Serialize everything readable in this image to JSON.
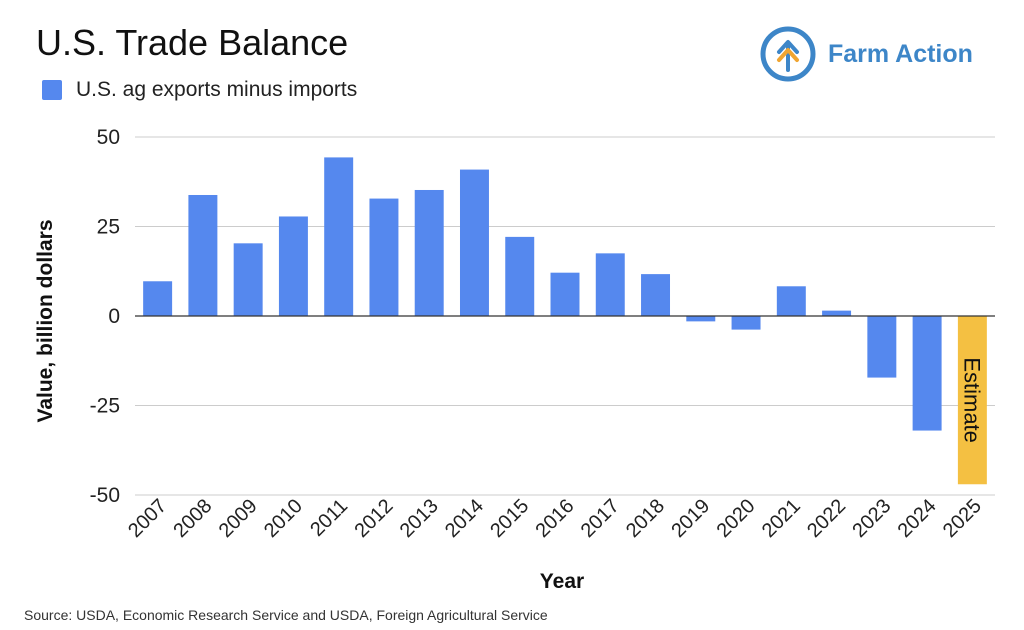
{
  "brand": {
    "name": "Farm Action",
    "logo_icon": "upward-arrow-circle-logo",
    "color": "#3d86c8",
    "accent": "#f0a531"
  },
  "footer": {
    "source": "Source: USDA, Economic Research Service and USDA, Foreign Agricultural Service"
  },
  "chart_data": {
    "type": "bar",
    "title": "U.S. Trade Balance",
    "legend": {
      "placement": "top-left",
      "entries": [
        "U.S. ag exports minus imports"
      ]
    },
    "xlabel": "Year",
    "ylabel": "Value, billion dollars",
    "ylim": [
      -50,
      50
    ],
    "yticks": [
      -50,
      -25,
      0,
      25,
      50
    ],
    "ytick_labels": [
      "-50",
      "-25",
      "0",
      "25",
      "50"
    ],
    "grid": true,
    "categories": [
      "2007",
      "2008",
      "2009",
      "2010",
      "2011",
      "2012",
      "2013",
      "2014",
      "2015",
      "2016",
      "2017",
      "2018",
      "2019",
      "2020",
      "2021",
      "2022",
      "2023",
      "2024",
      "2025"
    ],
    "series": [
      {
        "name": "U.S. ag exports minus imports",
        "color": "#5588ee",
        "values": [
          9.7,
          33.8,
          20.3,
          27.8,
          44.3,
          32.8,
          35.2,
          40.9,
          22.1,
          12.1,
          17.5,
          11.7,
          -1.5,
          -3.8,
          8.3,
          1.5,
          -17.2,
          -32.0,
          -47.0
        ]
      }
    ],
    "highlight": {
      "category": "2025",
      "color": "#f4c042",
      "label": "Estimate"
    }
  }
}
